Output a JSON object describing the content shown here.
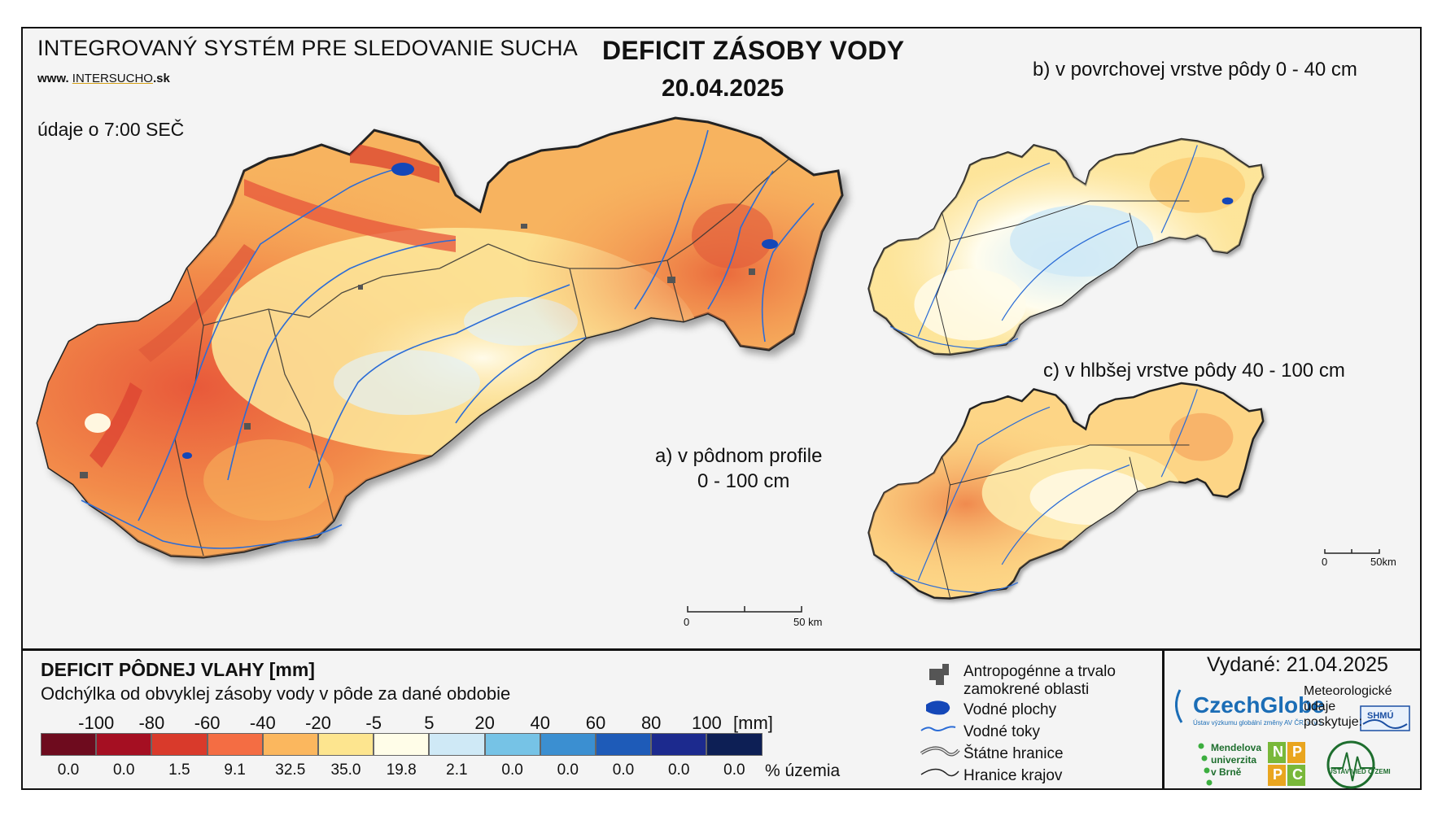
{
  "header": {
    "system_title": "INTEGROVANÝ SYSTÉM PRE SLEDOVANIE SUCHA",
    "url_prefix": "www.",
    "url_brand": "INTERSUCHO",
    "url_suffix": ".sk",
    "data_time": "údaje o 7:00 SEČ",
    "main_title": "DEFICIT ZÁSOBY VODY",
    "date": "20.04.2025"
  },
  "maps": {
    "main_label_line1": "a) v pôdnom profile",
    "main_label_line2": "0 - 100 cm",
    "top_inset_label": "b) v povrchovej vrstve pôdy 0 - 40 cm",
    "bottom_inset_label": "c) v hlbšej vrstve pôdy 40 - 100 cm",
    "main_scale": {
      "start": "0",
      "end": "50 km"
    },
    "inset_scale": {
      "start": "0",
      "end": "50km"
    }
  },
  "legend": {
    "title": "DEFICIT PÔDNEJ VLAHY [mm]",
    "subtitle": "Odchýlka od obvyklej zásoby vody v pôde za dané obdobie",
    "ticks": [
      "-100",
      "-80",
      "-60",
      "-40",
      "-20",
      "-5",
      "5",
      "20",
      "40",
      "60",
      "80",
      "100"
    ],
    "unit": "[mm]",
    "classes": [
      {
        "color": "#6e0b1e",
        "percent": "0.0"
      },
      {
        "color": "#a50f22",
        "percent": "0.0"
      },
      {
        "color": "#d93a2b",
        "percent": "1.5"
      },
      {
        "color": "#f46d43",
        "percent": "9.1"
      },
      {
        "color": "#fbb75e",
        "percent": "32.5"
      },
      {
        "color": "#fde58f",
        "percent": "35.0"
      },
      {
        "color": "#fffde8",
        "percent": "19.8"
      },
      {
        "color": "#cfe9f6",
        "percent": "2.1"
      },
      {
        "color": "#76c3e6",
        "percent": "0.0"
      },
      {
        "color": "#3b8fd1",
        "percent": "0.0"
      },
      {
        "color": "#1e5bb8",
        "percent": "0.0"
      },
      {
        "color": "#1c2a8e",
        "percent": "0.0"
      },
      {
        "color": "#0d1f55",
        "percent": "0.0"
      }
    ],
    "percent_unit": "% územia"
  },
  "symbols": [
    {
      "icon": "urban-area-icon",
      "label_line1": "Antropogénne a trvalo",
      "label_line2": "zamokrené oblasti"
    },
    {
      "icon": "water-body-icon",
      "label_line1": "Vodné plochy",
      "label_line2": ""
    },
    {
      "icon": "river-icon",
      "label_line1": "Vodné toky",
      "label_line2": ""
    },
    {
      "icon": "state-border-icon",
      "label_line1": "Štátne hranice",
      "label_line2": ""
    },
    {
      "icon": "region-border-icon",
      "label_line1": "Hranice krajov",
      "label_line2": ""
    }
  ],
  "footer": {
    "issued": "Vydané: 21.04.2025",
    "czechglobe": "CzechGlobe",
    "czechglobe_tagline": "Ústav výzkumu globální změny AV ČR, v. v. i.",
    "meteo_text": "Meteorologické údaje poskytuje:",
    "shmu": "SHMÚ",
    "mendel": "Mendelova univerzita v Brně",
    "npc_letters": [
      "N",
      "P",
      "P",
      "C"
    ],
    "uvz": "ÚSTAV VIED O ZEMI"
  },
  "colors": {
    "frame_bg": "#f4f4f4",
    "border": "#111111",
    "river": "#2b6cd6",
    "water": "#1447b8",
    "urban": "#555555"
  }
}
